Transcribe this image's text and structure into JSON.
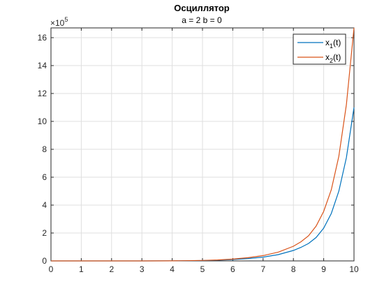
{
  "chart_data": {
    "type": "line",
    "title": "Осциллятор",
    "subtitle": "a = 2 b = 0",
    "xlim": [
      0,
      10
    ],
    "ylim": [
      0,
      1670000.0
    ],
    "x_ticks": [
      0,
      1,
      2,
      3,
      4,
      5,
      6,
      7,
      8,
      9,
      10
    ],
    "y_ticks": [
      0,
      2,
      4,
      6,
      8,
      10,
      12,
      14,
      16
    ],
    "y_exponent_base": "×10",
    "y_exponent": "5",
    "grid": true,
    "legend_position": "top-right",
    "series": [
      {
        "name": "x",
        "subscript": "1",
        "suffix": "(t)",
        "color": "#0072BD",
        "x": [
          0,
          1,
          2,
          3,
          4,
          5,
          5.5,
          6,
          6.5,
          7,
          7.5,
          8,
          8.25,
          8.5,
          8.75,
          9,
          9.25,
          9.5,
          9.75,
          10
        ],
        "y": [
          0,
          0,
          10,
          60,
          370,
          2500,
          5000,
          10000,
          17000,
          27000,
          45000,
          75000,
          97000,
          125000,
          168000,
          235000,
          340000,
          500000,
          740000,
          1100000
        ]
      },
      {
        "name": "x",
        "subscript": "2",
        "suffix": "(t)",
        "color": "#D95319",
        "x": [
          0,
          1,
          2,
          3,
          4,
          5,
          5.5,
          6,
          6.5,
          7,
          7.5,
          8,
          8.25,
          8.5,
          8.75,
          9,
          9.25,
          9.5,
          9.75,
          10
        ],
        "y": [
          0,
          0,
          15,
          90,
          550,
          3500,
          7000,
          13000,
          23000,
          38000,
          63000,
          105000,
          137000,
          180000,
          250000,
          355000,
          510000,
          750000,
          1120000,
          1670000
        ]
      }
    ]
  }
}
